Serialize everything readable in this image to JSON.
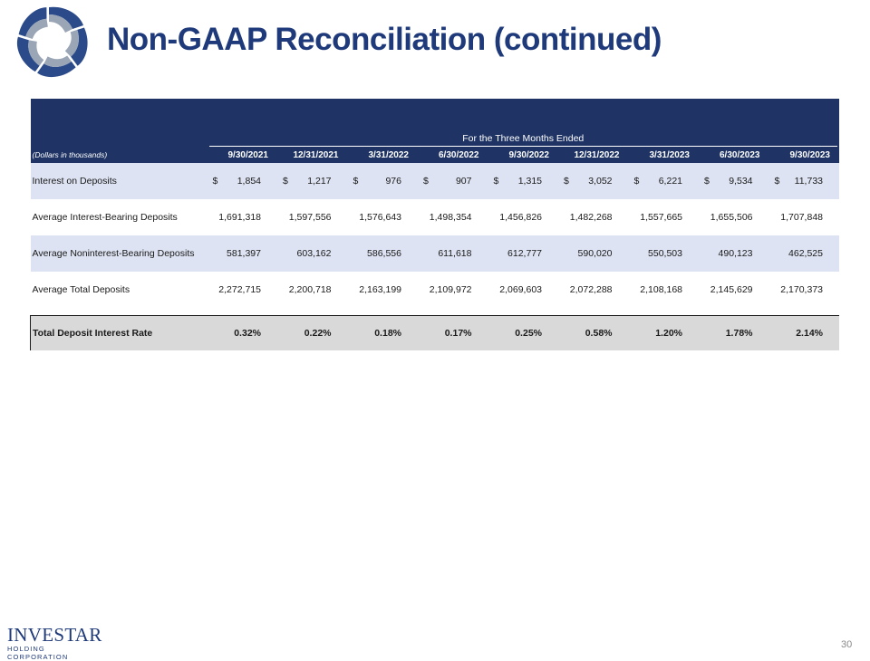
{
  "header": {
    "title": "Non-GAAP Reconciliation (continued)"
  },
  "table": {
    "group_header": "For the Three Months Ended",
    "label_header": "(Dollars in thousands)",
    "columns": [
      "9/30/2021",
      "12/31/2021",
      "3/31/2022",
      "6/30/2022",
      "9/30/2022",
      "12/31/2022",
      "3/31/2023",
      "6/30/2023",
      "9/30/2023"
    ],
    "currency_symbol": "$",
    "rows": [
      {
        "label": "Interest on Deposits",
        "shaded": true,
        "dollar": true,
        "values": [
          "1,854",
          "1,217",
          "976",
          "907",
          "1,315",
          "3,052",
          "6,221",
          "9,534",
          "11,733"
        ]
      },
      {
        "label": "Average Interest-Bearing Deposits",
        "shaded": false,
        "dollar": false,
        "values": [
          "1,691,318",
          "1,597,556",
          "1,576,643",
          "1,498,354",
          "1,456,826",
          "1,482,268",
          "1,557,665",
          "1,655,506",
          "1,707,848"
        ]
      },
      {
        "label": "Average Noninterest-Bearing Deposits",
        "shaded": true,
        "dollar": false,
        "values": [
          "581,397",
          "603,162",
          "586,556",
          "611,618",
          "612,777",
          "590,020",
          "550,503",
          "490,123",
          "462,525"
        ]
      },
      {
        "label": "Average Total Deposits",
        "shaded": false,
        "dollar": false,
        "values": [
          "2,272,715",
          "2,200,718",
          "2,163,199",
          "2,109,972",
          "2,069,603",
          "2,072,288",
          "2,108,168",
          "2,145,629",
          "2,170,373"
        ]
      }
    ],
    "total_row": {
      "label": "Total Deposit Interest Rate",
      "values": [
        "0.32%",
        "0.22%",
        "0.18%",
        "0.17%",
        "0.25%",
        "0.58%",
        "1.20%",
        "1.78%",
        "2.14%"
      ]
    }
  },
  "footer": {
    "brand_name": "INVESTAR",
    "brand_subtitle": "HOLDING CORPORATION",
    "page_number": "30"
  },
  "colors": {
    "header_band": "#1f3464",
    "title": "#1f3a7a",
    "row_shade": "#dde3f2",
    "total_row": "#d9d9d9"
  },
  "icons": {
    "logo": "investar-star-logo"
  }
}
